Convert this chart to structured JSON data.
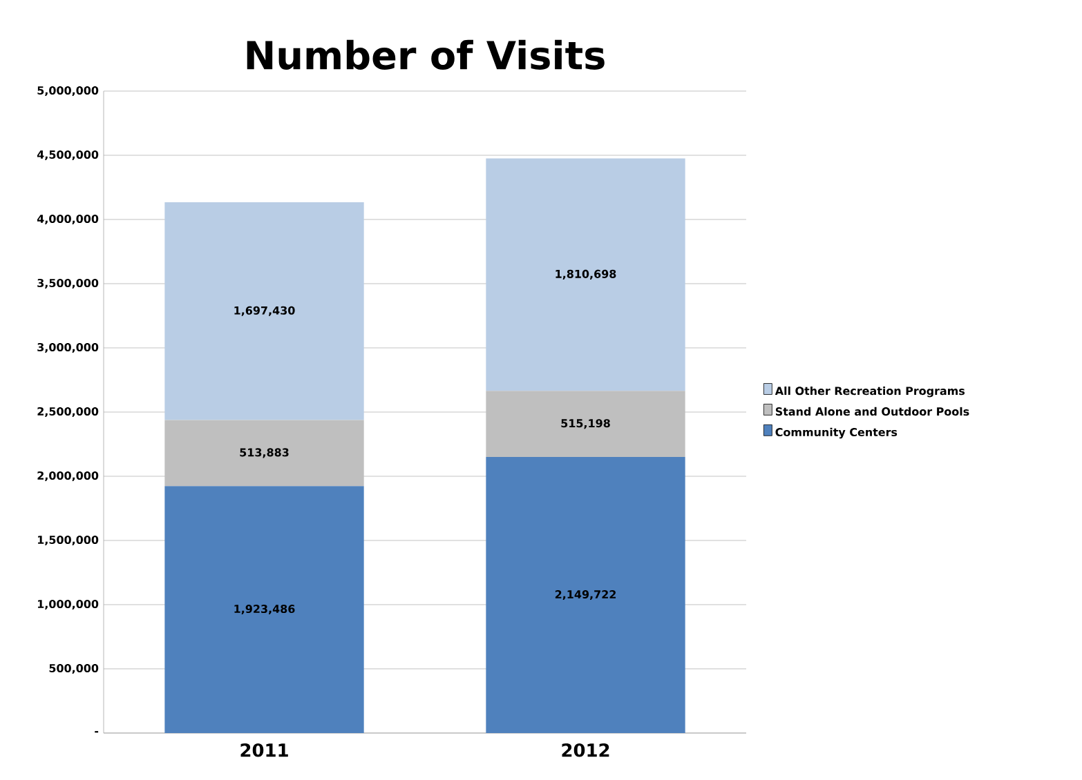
{
  "chart_data": {
    "type": "bar",
    "title": "Number of Visits",
    "stacked": true,
    "categories": [
      "2011",
      "2012"
    ],
    "series": [
      {
        "name": "Community Centers",
        "color": "#4f81bd",
        "values": [
          1923486,
          2149722
        ],
        "value_labels": [
          "1,923,486",
          "2,149,722"
        ]
      },
      {
        "name": "Stand Alone and Outdoor Pools",
        "color": "#bfbfbf",
        "values": [
          513883,
          515198
        ],
        "value_labels": [
          "513,883",
          "515,198"
        ]
      },
      {
        "name": "All Other Recreation Programs",
        "color": "#b9cde5",
        "values": [
          1697430,
          1810698
        ],
        "value_labels": [
          "1,697,430",
          "1,810,698"
        ]
      }
    ],
    "ylim": [
      0,
      5000000
    ],
    "yticks": [
      {
        "value": 0,
        "label": "-"
      },
      {
        "value": 500000,
        "label": "500,000"
      },
      {
        "value": 1000000,
        "label": "1,000,000"
      },
      {
        "value": 1500000,
        "label": "1,500,000"
      },
      {
        "value": 2000000,
        "label": "2,000,000"
      },
      {
        "value": 2500000,
        "label": "2,500,000"
      },
      {
        "value": 3000000,
        "label": "3,000,000"
      },
      {
        "value": 3500000,
        "label": "3,500,000"
      },
      {
        "value": 4000000,
        "label": "4,000,000"
      },
      {
        "value": 4500000,
        "label": "4,500,000"
      },
      {
        "value": 5000000,
        "label": "5,000,000"
      }
    ],
    "grid": "y",
    "legend": "right"
  }
}
